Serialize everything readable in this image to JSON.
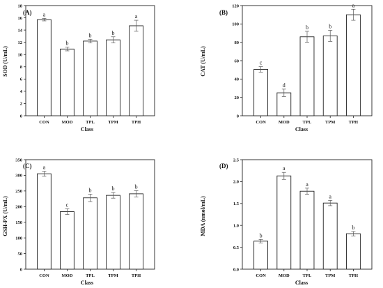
{
  "chart_data": [
    {
      "type": "bar",
      "panel_label": "(A)",
      "categories": [
        "CON",
        "MOD",
        "TPL",
        "TPM",
        "TPH"
      ],
      "values": [
        15.7,
        10.9,
        12.2,
        12.4,
        14.7
      ],
      "errors": [
        0.2,
        0.3,
        0.3,
        0.5,
        0.9
      ],
      "letters": [
        "a",
        "b",
        "b",
        "b",
        "a"
      ],
      "xlabel": "Class",
      "ylabel": "SOD (U/mL)",
      "ylim": [
        0,
        18
      ],
      "yticks": [
        0,
        2,
        4,
        6,
        8,
        10,
        12,
        14,
        16,
        18
      ],
      "grid": false
    },
    {
      "type": "bar",
      "panel_label": "(B)",
      "categories": [
        "CON",
        "MOD",
        "TPL",
        "TPM",
        "TPH"
      ],
      "values": [
        50.5,
        25,
        86,
        87,
        110
      ],
      "errors": [
        3,
        4,
        6,
        6,
        6
      ],
      "letters": [
        "c",
        "d",
        "b",
        "b",
        "a"
      ],
      "xlabel": "Class",
      "ylabel": "CAT (U/mL)",
      "ylim": [
        0,
        120
      ],
      "yticks": [
        0,
        20,
        40,
        60,
        80,
        100,
        120
      ],
      "grid": false
    },
    {
      "type": "bar",
      "panel_label": "(C)",
      "categories": [
        "CON",
        "MOD",
        "TPL",
        "TPM",
        "TPH"
      ],
      "values": [
        305,
        184,
        228,
        236,
        241
      ],
      "errors": [
        8,
        9,
        12,
        9,
        10
      ],
      "letters": [
        "a",
        "c",
        "b",
        "b",
        "b"
      ],
      "xlabel": "Class",
      "ylabel": "GSH-PX (U/mL)",
      "ylim": [
        0,
        350
      ],
      "yticks": [
        0,
        50,
        100,
        150,
        200,
        250,
        300,
        350
      ],
      "grid": false
    },
    {
      "type": "bar",
      "panel_label": "(D)",
      "categories": [
        "CON",
        "MOD",
        "TPL",
        "TPM",
        "TPH"
      ],
      "values": [
        0.64,
        2.13,
        1.78,
        1.51,
        0.81
      ],
      "errors": [
        0.04,
        0.08,
        0.07,
        0.06,
        0.05
      ],
      "letters": [
        "b",
        "a",
        "a",
        "a",
        "b"
      ],
      "xlabel": "Class",
      "ylabel": "MDA (nmol/mL)",
      "ylim": [
        0,
        2.5
      ],
      "yticks": [
        "0.0",
        "0.5",
        "1.0",
        "1.5",
        "2.0",
        "2.5"
      ],
      "grid": false
    }
  ]
}
